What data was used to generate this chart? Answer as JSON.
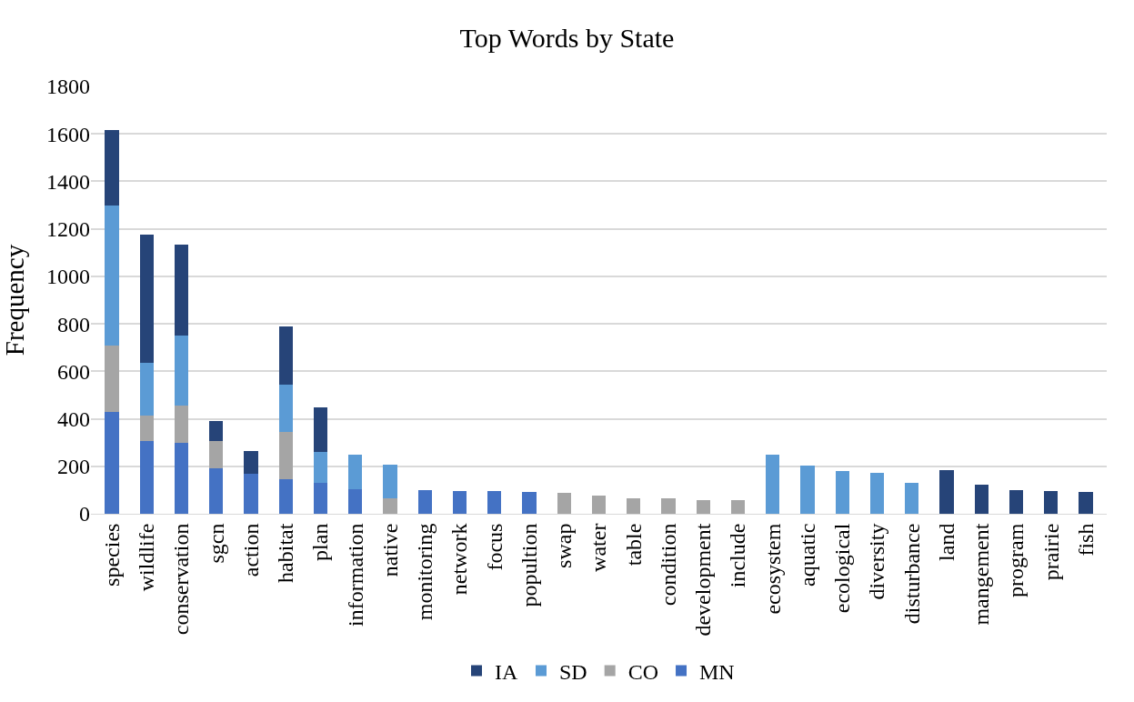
{
  "chart_data": {
    "type": "bar",
    "title": "Top Words by State",
    "ylabel": "Frequency",
    "stacked": true,
    "categories": [
      "species",
      "wildlife",
      "conservation",
      "sgcn",
      "action",
      "habitat",
      "plan",
      "information",
      "native",
      "monitoring",
      "network",
      "focus",
      "popultion",
      "swap",
      "water",
      "table",
      "condition",
      "development",
      "include",
      "ecosystem",
      "aquatic",
      "ecological",
      "diversity",
      "disturbance",
      "land",
      "mangement",
      "program",
      "prairie",
      "fish"
    ],
    "series": [
      {
        "name": "MN",
        "color": "#4472c4",
        "values": [
          430,
          305,
          300,
          190,
          170,
          145,
          130,
          105,
          null,
          100,
          95,
          95,
          92,
          null,
          null,
          null,
          null,
          null,
          null,
          null,
          null,
          null,
          null,
          null,
          null,
          null,
          null,
          null,
          null
        ]
      },
      {
        "name": "CO",
        "color": "#a5a5a5",
        "values": [
          280,
          110,
          155,
          115,
          null,
          200,
          null,
          null,
          65,
          null,
          null,
          null,
          null,
          89,
          77,
          65,
          65,
          59,
          56,
          null,
          null,
          null,
          null,
          null,
          null,
          null,
          null,
          null,
          null
        ]
      },
      {
        "name": "SD",
        "color": "#5b9bd5",
        "values": [
          590,
          220,
          295,
          null,
          null,
          200,
          130,
          145,
          140,
          null,
          null,
          null,
          null,
          null,
          null,
          null,
          null,
          null,
          null,
          248,
          203,
          179,
          173,
          131,
          null,
          null,
          null,
          null,
          null
        ]
      },
      {
        "name": "IA",
        "color": "#264478",
        "values": [
          315,
          540,
          385,
          85,
          95,
          245,
          190,
          null,
          null,
          null,
          null,
          null,
          null,
          null,
          null,
          null,
          null,
          null,
          null,
          null,
          null,
          null,
          null,
          null,
          185,
          122,
          101,
          95,
          92
        ]
      }
    ],
    "ylim": [
      0,
      1800
    ],
    "yticks": [
      0,
      200,
      400,
      600,
      800,
      1000,
      1200,
      1400,
      1600,
      1800
    ],
    "grid": "y",
    "legend": "bottom"
  }
}
